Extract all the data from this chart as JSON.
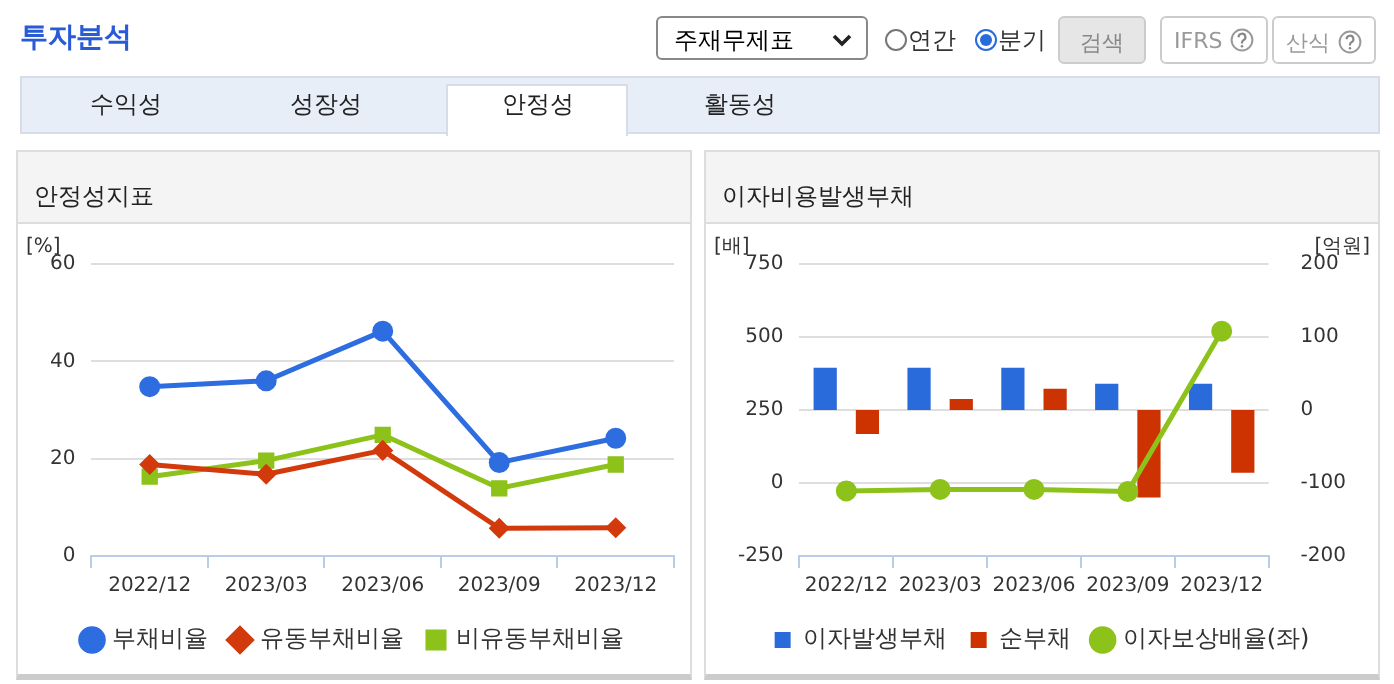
{
  "chart_data": [
    {
      "type": "other",
      "title": "투자분석",
      "annotations": [
        "주재무제표",
        "연간",
        "분기",
        "검색",
        "IFRS",
        "산식",
        "수익성",
        "성장성",
        "안정성",
        "활동성"
      ]
    },
    {
      "type": "line",
      "title": "안정성지표",
      "ylabel": "[%]",
      "categories": [
        "2022/12",
        "2023/03",
        "2023/06",
        "2023/09",
        "2023/12"
      ],
      "ylim": [
        0,
        60
      ],
      "yticks": [
        0,
        20,
        40,
        60
      ],
      "grid": "y",
      "legend": "bottom",
      "series": [
        {
          "name": "부채비율",
          "color": "#2d6de0",
          "marker": "circle",
          "values": [
            34.8,
            36.0,
            46.2,
            19.2,
            24.2
          ]
        },
        {
          "name": "유동부채비율",
          "color": "#d23a0c",
          "marker": "diamond",
          "values": [
            18.8,
            16.8,
            21.7,
            5.7,
            5.8
          ]
        },
        {
          "name": "비유동부채비율",
          "color": "#8cc21a",
          "marker": "square",
          "values": [
            16.3,
            19.6,
            24.9,
            13.9,
            18.8
          ]
        }
      ]
    },
    {
      "type": "bar",
      "title": "이자비용발생부채",
      "ylabel": "[배]",
      "y2label": "[억원]",
      "categories": [
        "2022/12",
        "2023/03",
        "2023/06",
        "2023/09",
        "2023/12"
      ],
      "ylim": [
        -250,
        750
      ],
      "yticks": [
        -250,
        0,
        250,
        500,
        750
      ],
      "y2lim": [
        -200,
        200
      ],
      "y2ticks": [
        -200,
        -100,
        0,
        100,
        200
      ],
      "grid": "y",
      "legend": "bottom",
      "series": [
        {
          "name": "이자발생부채",
          "color": "#2a6bdc",
          "axis": "y2",
          "values": [
            58,
            58,
            58,
            36,
            36
          ]
        },
        {
          "name": "순부채",
          "color": "#cc3300",
          "axis": "y2",
          "values": [
            -33,
            15,
            29,
            -120,
            -86
          ]
        },
        {
          "name": "이자보상배율(좌)",
          "type": "line",
          "marker": "circle",
          "color": "#8cc21a",
          "values": [
            -27,
            -22,
            -22,
            -29,
            520
          ]
        }
      ]
    }
  ]
}
